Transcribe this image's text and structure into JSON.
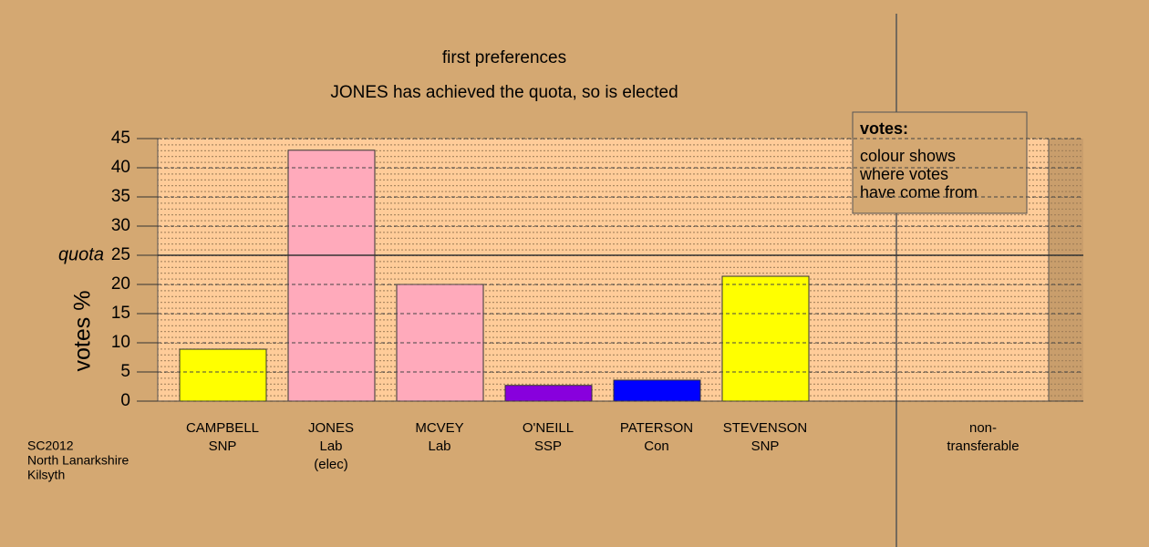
{
  "chart_data": {
    "type": "bar",
    "title": "first preferences",
    "subtitle": "JONES has achieved the quota, so is elected",
    "y_label": "votes %",
    "categories": [
      [
        "CAMPBELL",
        "SNP"
      ],
      [
        "JONES",
        "Lab",
        "(elec)"
      ],
      [
        "MCVEY",
        "Lab"
      ],
      [
        "O'NEILL",
        "SSP"
      ],
      [
        "PATERSON",
        "Con"
      ],
      [
        "STEVENSON",
        "SNP"
      ],
      [
        "non-",
        "transferable"
      ]
    ],
    "values": [
      8.9,
      43,
      20,
      2.7,
      3.6,
      21.4,
      0
    ],
    "colors": [
      "#ffff00",
      "#ffaabb",
      "#ffaabb",
      "#8800dd",
      "#0000ff",
      "#ffff00",
      "#888888"
    ],
    "ylim": [
      0,
      45
    ],
    "yticks": [
      0,
      5,
      10,
      15,
      20,
      25,
      30,
      35,
      40,
      45
    ],
    "quota": {
      "value": 25,
      "label": "quota"
    },
    "grid": true,
    "legend": {
      "title": "votes:",
      "lines": [
        "colour shows",
        "where votes",
        "have come from"
      ]
    },
    "footnote": [
      "SC2012",
      "North Lanarkshire",
      "Kilsyth"
    ]
  }
}
